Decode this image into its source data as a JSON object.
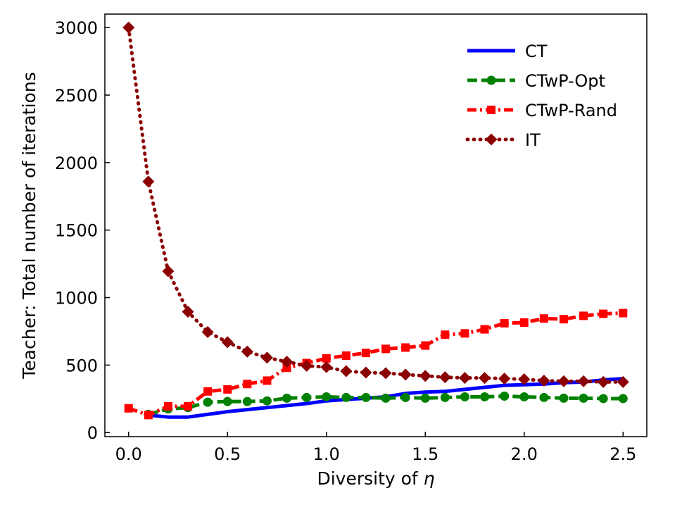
{
  "chart_data": {
    "type": "line",
    "title": "",
    "xlabel": "Diversity of",
    "xlabel_symbol": "η",
    "ylabel": "Teacher: Total number of iterations",
    "xlim": [
      -0.12,
      2.62
    ],
    "ylim": [
      -30,
      3100
    ],
    "xticks": [
      0.0,
      0.5,
      1.0,
      1.5,
      2.0,
      2.5
    ],
    "xtick_labels": [
      "0.0",
      "0.5",
      "1.0",
      "1.5",
      "2.0",
      "2.5"
    ],
    "yticks": [
      0,
      500,
      1000,
      1500,
      2000,
      2500,
      3000
    ],
    "ytick_labels": [
      "0",
      "500",
      "1000",
      "1500",
      "2000",
      "2500",
      "3000"
    ],
    "legend_position": "top-right",
    "series": [
      {
        "name": "CT",
        "color": "#0000ff",
        "style": "solid",
        "marker": "none",
        "x": [
          0.1,
          0.2,
          0.3,
          0.4,
          0.5,
          0.6,
          0.7,
          0.8,
          0.9,
          1.0,
          1.1,
          1.2,
          1.3,
          1.4,
          1.5,
          1.6,
          1.7,
          1.8,
          1.9,
          2.0,
          2.1,
          2.2,
          2.3,
          2.4,
          2.5
        ],
        "values": [
          130,
          115,
          115,
          135,
          155,
          170,
          185,
          200,
          215,
          235,
          245,
          255,
          265,
          290,
          300,
          305,
          320,
          335,
          350,
          355,
          360,
          370,
          375,
          390,
          400
        ]
      },
      {
        "name": "CTwP-Opt",
        "color": "#008000",
        "style": "dashed",
        "marker": "circle",
        "x": [
          0.1,
          0.2,
          0.3,
          0.4,
          0.5,
          0.6,
          0.7,
          0.8,
          0.9,
          1.0,
          1.1,
          1.2,
          1.3,
          1.4,
          1.5,
          1.6,
          1.7,
          1.8,
          1.9,
          2.0,
          2.1,
          2.2,
          2.3,
          2.4,
          2.5
        ],
        "values": [
          135,
          175,
          185,
          225,
          230,
          230,
          235,
          255,
          260,
          265,
          260,
          260,
          255,
          260,
          255,
          260,
          265,
          265,
          270,
          265,
          260,
          255,
          255,
          252,
          252
        ]
      },
      {
        "name": "CTwP-Rand",
        "color": "#ff0000",
        "style": "dashdot",
        "marker": "square",
        "x": [
          0.0,
          0.1,
          0.2,
          0.3,
          0.4,
          0.5,
          0.6,
          0.7,
          0.8,
          0.9,
          1.0,
          1.1,
          1.2,
          1.3,
          1.4,
          1.5,
          1.6,
          1.7,
          1.8,
          1.9,
          2.0,
          2.1,
          2.2,
          2.3,
          2.4,
          2.5
        ],
        "values": [
          180,
          130,
          195,
          195,
          305,
          320,
          360,
          385,
          480,
          515,
          550,
          570,
          590,
          620,
          630,
          645,
          725,
          735,
          765,
          810,
          815,
          845,
          840,
          865,
          880,
          885
        ]
      },
      {
        "name": "IT",
        "color": "#8b0000",
        "style": "dotted",
        "marker": "diamond",
        "x": [
          0.0,
          0.1,
          0.2,
          0.3,
          0.4,
          0.5,
          0.6,
          0.7,
          0.8,
          0.9,
          1.0,
          1.1,
          1.2,
          1.3,
          1.4,
          1.5,
          1.6,
          1.7,
          1.8,
          1.9,
          2.0,
          2.1,
          2.2,
          2.3,
          2.4,
          2.5
        ],
        "values": [
          3000,
          1860,
          1195,
          895,
          745,
          670,
          600,
          555,
          525,
          495,
          485,
          455,
          445,
          440,
          430,
          420,
          410,
          405,
          405,
          400,
          395,
          385,
          380,
          380,
          375,
          375
        ]
      }
    ]
  }
}
